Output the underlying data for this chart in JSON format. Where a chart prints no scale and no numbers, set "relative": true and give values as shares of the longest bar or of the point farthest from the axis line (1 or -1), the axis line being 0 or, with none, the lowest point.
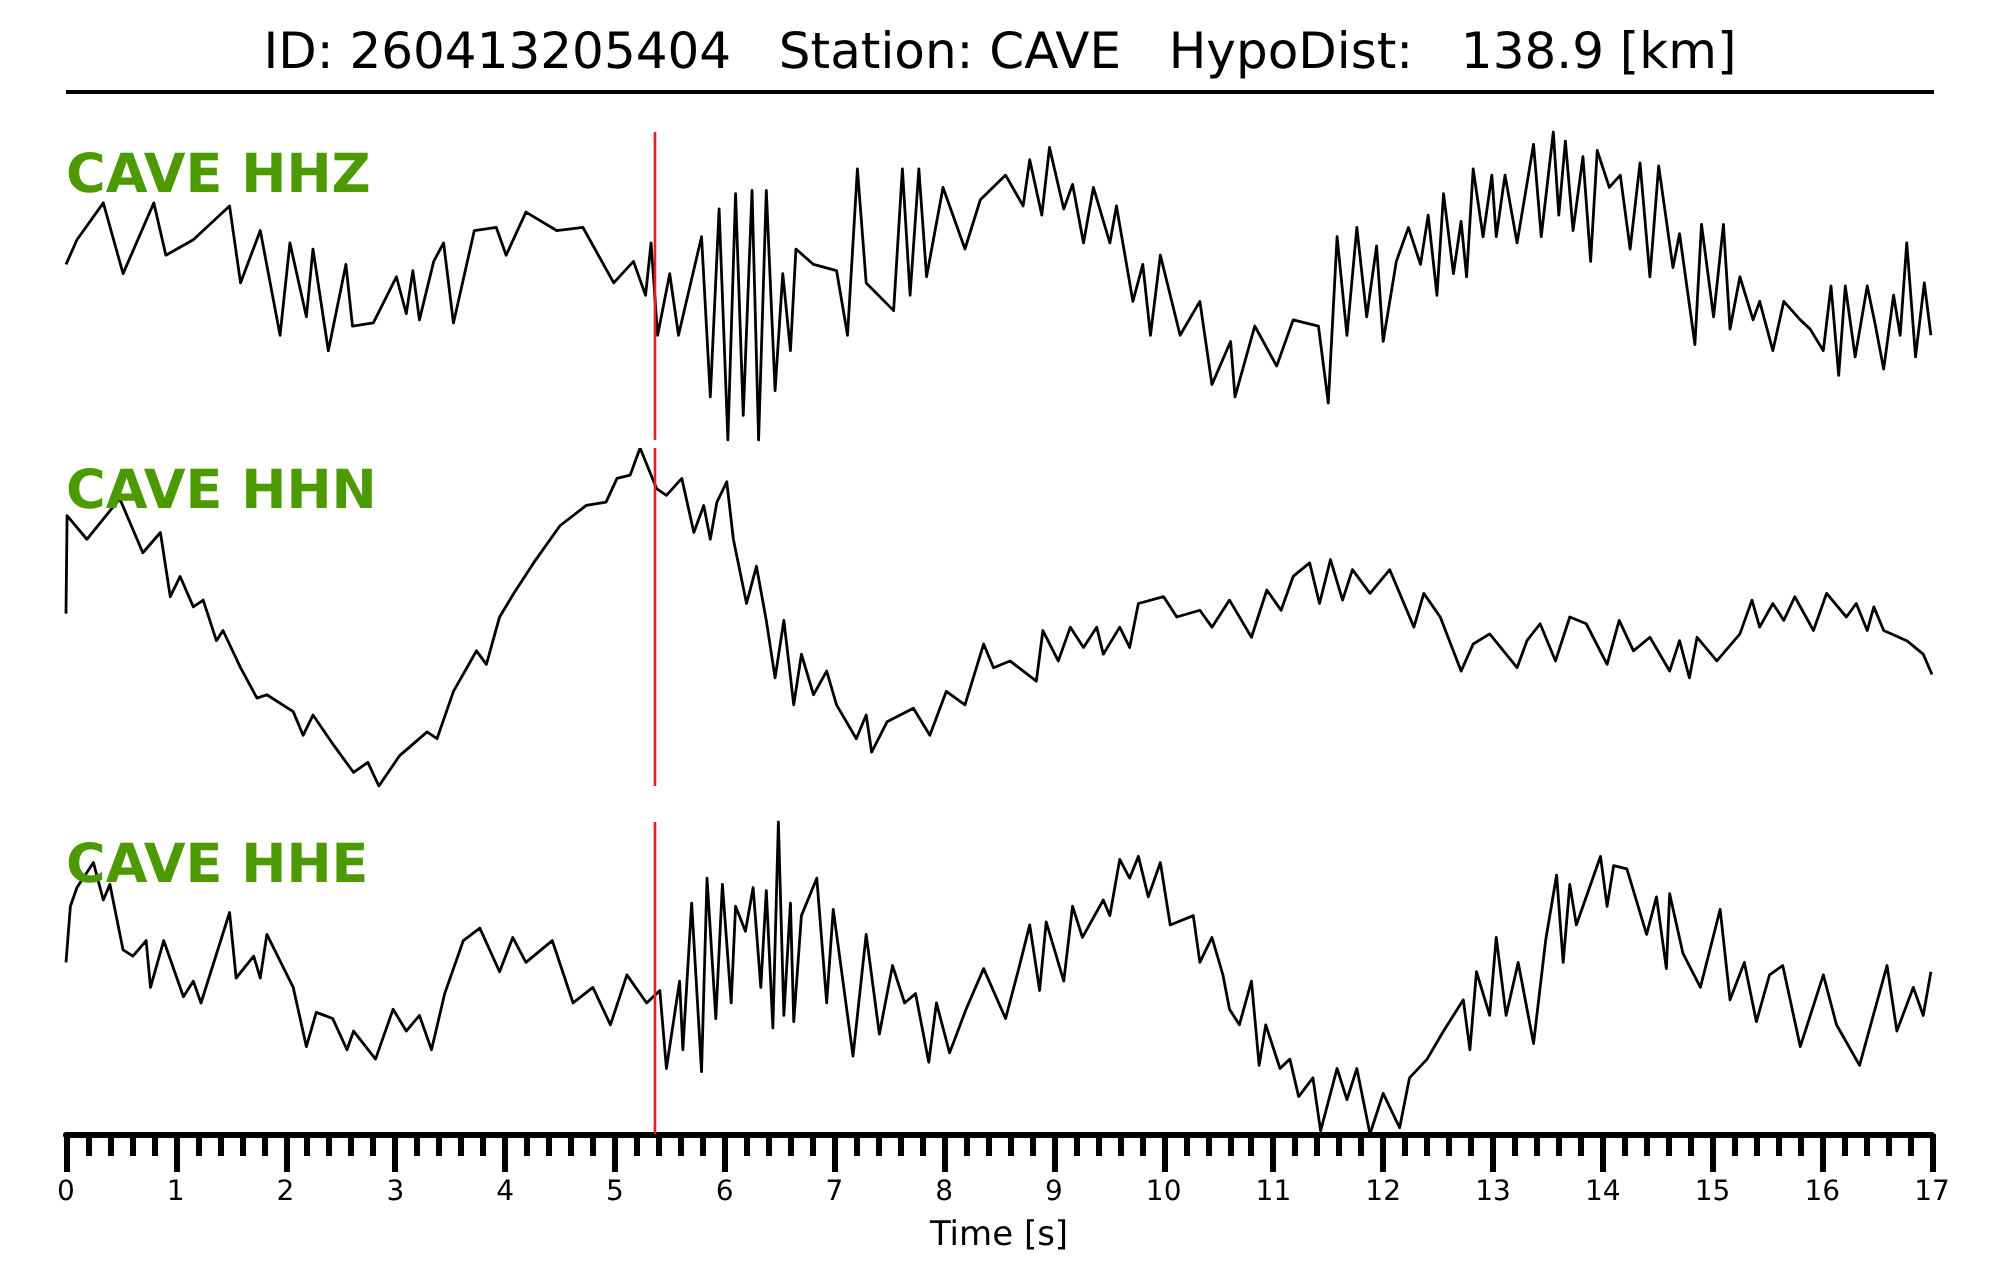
{
  "chart_data": [
    {
      "type": "line",
      "title": "ID: 260413205404   Station: CAVE   HypoDist:   138.9 [km]",
      "relative": true,
      "xlim": [
        0,
        17
      ],
      "tick_labels": false,
      "legend": false,
      "marker": "none",
      "line_style": "solid",
      "ref_lines": [
        {
          "axis": "x",
          "value": 5.37,
          "color": "#e02020"
        }
      ],
      "series": [
        {
          "name": "CAVE HHZ",
          "color": "#000000",
          "x": [
            0,
            0.1,
            0.34,
            0.52,
            0.8,
            0.91,
            1.16,
            1.49,
            1.59,
            1.77,
            1.95,
            2.04,
            2.19,
            2.25,
            2.39,
            2.55,
            2.61,
            2.8,
            3.01,
            3.1,
            3.16,
            3.22,
            3.35,
            3.44,
            3.53,
            3.72,
            3.92,
            4.01,
            4.19,
            4.47,
            4.71,
            4.99,
            5.17,
            5.28,
            5.33,
            5.39,
            5.5,
            5.58,
            5.79,
            5.87,
            5.95,
            6.03,
            6.1,
            6.17,
            6.25,
            6.31,
            6.38,
            6.46,
            6.53,
            6.6,
            6.65,
            6.81,
            7.02,
            7.12,
            7.21,
            7.29,
            7.54,
            7.62,
            7.69,
            7.77,
            7.84,
            7.99,
            8.19,
            8.33,
            8.56,
            8.72,
            8.78,
            8.89,
            8.96,
            9.09,
            9.17,
            9.27,
            9.36,
            9.51,
            9.57,
            9.72,
            9.81,
            9.88,
            9.97,
            10.15,
            10.33,
            10.44,
            10.61,
            10.65,
            10.83,
            11.03,
            11.18,
            11.41,
            11.5,
            11.58,
            11.67,
            11.76,
            11.85,
            11.94,
            12,
            12.12,
            12.23,
            12.34,
            12.41,
            12.49,
            12.55,
            12.64,
            12.71,
            12.76,
            12.82,
            12.91,
            12.99,
            13.03,
            13.11,
            13.22,
            13.37,
            13.44,
            13.55,
            13.6,
            13.66,
            13.73,
            13.82,
            13.89,
            13.95,
            14.06,
            14.16,
            14.25,
            14.34,
            14.43,
            14.51,
            14.64,
            14.7,
            14.84,
            14.9,
            15.01,
            15.1,
            15.16,
            15.25,
            15.37,
            15.43,
            15.55,
            15.65,
            15.8,
            15.89,
            16.01,
            16.08,
            16.15,
            16.21,
            16.3,
            16.41,
            16.48,
            16.56,
            16.65,
            16.71,
            16.77,
            16.85,
            16.93,
            16.99
          ],
          "values": [
            0.57,
            0.65,
            0.77,
            0.54,
            0.77,
            0.6,
            0.65,
            0.76,
            0.51,
            0.68,
            0.34,
            0.64,
            0.4,
            0.62,
            0.29,
            0.57,
            0.37,
            0.38,
            0.53,
            0.41,
            0.55,
            0.39,
            0.58,
            0.64,
            0.38,
            0.68,
            0.69,
            0.6,
            0.74,
            0.68,
            0.69,
            0.51,
            0.58,
            0.47,
            0.64,
            0.34,
            0.54,
            0.34,
            0.66,
            0.14,
            0.75,
            0,
            0.8,
            0.08,
            0.81,
            0,
            0.81,
            0.16,
            0.54,
            0.29,
            0.62,
            0.57,
            0.55,
            0.34,
            0.88,
            0.51,
            0.42,
            0.88,
            0.47,
            0.88,
            0.53,
            0.82,
            0.62,
            0.78,
            0.86,
            0.76,
            0.91,
            0.73,
            0.95,
            0.75,
            0.83,
            0.64,
            0.82,
            0.64,
            0.76,
            0.45,
            0.57,
            0.34,
            0.6,
            0.34,
            0.45,
            0.18,
            0.32,
            0.14,
            0.37,
            0.24,
            0.39,
            0.37,
            0.12,
            0.66,
            0.34,
            0.69,
            0.4,
            0.63,
            0.32,
            0.58,
            0.69,
            0.57,
            0.73,
            0.47,
            0.8,
            0.54,
            0.71,
            0.53,
            0.88,
            0.66,
            0.86,
            0.66,
            0.86,
            0.64,
            0.96,
            0.66,
            1,
            0.73,
            0.97,
            0.68,
            0.92,
            0.58,
            0.94,
            0.82,
            0.86,
            0.62,
            0.9,
            0.53,
            0.89,
            0.56,
            0.67,
            0.31,
            0.7,
            0.4,
            0.7,
            0.36,
            0.53,
            0.39,
            0.45,
            0.29,
            0.45,
            0.39,
            0.36,
            0.29,
            0.5,
            0.21,
            0.5,
            0.27,
            0.5,
            0.38,
            0.23,
            0.47,
            0.34,
            0.64,
            0.27,
            0.51,
            0.34
          ]
        }
      ]
    },
    {
      "type": "line",
      "relative": true,
      "xlim": [
        0,
        17
      ],
      "tick_labels": false,
      "legend": false,
      "marker": "none",
      "line_style": "solid",
      "ref_lines": [
        {
          "axis": "x",
          "value": 5.37,
          "color": "#e02020"
        }
      ],
      "series": [
        {
          "name": "CAVE HHN",
          "color": "#000000",
          "x": [
            0,
            0.01,
            0.19,
            0.49,
            0.7,
            0.86,
            0.95,
            1.04,
            1.16,
            1.25,
            1.37,
            1.43,
            1.59,
            1.74,
            1.83,
            2.07,
            2.16,
            2.25,
            2.44,
            2.62,
            2.75,
            2.85,
            3.04,
            3.29,
            3.38,
            3.53,
            3.74,
            3.83,
            3.95,
            4.08,
            4.26,
            4.5,
            4.74,
            4.92,
            5.02,
            5.14,
            5.23,
            5.38,
            5.47,
            5.61,
            5.72,
            5.81,
            5.87,
            5.93,
            6.02,
            6.08,
            6.2,
            6.29,
            6.38,
            6.46,
            6.54,
            6.63,
            6.7,
            6.81,
            6.93,
            7.02,
            7.2,
            7.29,
            7.34,
            7.48,
            7.72,
            7.87,
            8.02,
            8.19,
            8.36,
            8.45,
            8.6,
            8.84,
            8.9,
            9.04,
            9.15,
            9.27,
            9.39,
            9.45,
            9.6,
            9.69,
            9.77,
            10,
            10.12,
            10.33,
            10.44,
            10.6,
            10.8,
            10.94,
            11.07,
            11.18,
            11.33,
            11.42,
            11.52,
            11.63,
            11.72,
            11.88,
            12.06,
            12.28,
            12.37,
            12.52,
            12.71,
            12.82,
            12.97,
            13.22,
            13.31,
            13.43,
            13.57,
            13.7,
            13.85,
            14.04,
            14.15,
            14.28,
            14.43,
            14.61,
            14.7,
            14.79,
            14.86,
            15.04,
            15.25,
            15.36,
            15.43,
            15.55,
            15.65,
            15.75,
            15.92,
            16.04,
            16.22,
            16.31,
            16.41,
            16.47,
            16.56,
            16.77,
            16.92,
            17
          ],
          "values": [
            0.51,
            0.8,
            0.73,
            0.85,
            0.69,
            0.75,
            0.56,
            0.62,
            0.53,
            0.55,
            0.43,
            0.46,
            0.35,
            0.26,
            0.27,
            0.22,
            0.15,
            0.21,
            0.12,
            0.04,
            0.07,
            0,
            0.09,
            0.16,
            0.14,
            0.28,
            0.4,
            0.36,
            0.5,
            0.57,
            0.66,
            0.77,
            0.83,
            0.84,
            0.91,
            0.92,
            1,
            0.88,
            0.86,
            0.91,
            0.75,
            0.83,
            0.73,
            0.84,
            0.9,
            0.73,
            0.54,
            0.65,
            0.49,
            0.32,
            0.49,
            0.24,
            0.39,
            0.27,
            0.34,
            0.24,
            0.14,
            0.21,
            0.1,
            0.19,
            0.23,
            0.15,
            0.28,
            0.24,
            0.42,
            0.35,
            0.37,
            0.31,
            0.46,
            0.37,
            0.47,
            0.41,
            0.47,
            0.39,
            0.47,
            0.41,
            0.54,
            0.56,
            0.5,
            0.52,
            0.47,
            0.55,
            0.44,
            0.58,
            0.52,
            0.62,
            0.66,
            0.54,
            0.67,
            0.55,
            0.64,
            0.57,
            0.64,
            0.47,
            0.57,
            0.5,
            0.34,
            0.42,
            0.45,
            0.35,
            0.43,
            0.48,
            0.37,
            0.5,
            0.48,
            0.36,
            0.49,
            0.4,
            0.44,
            0.34,
            0.43,
            0.32,
            0.44,
            0.37,
            0.45,
            0.55,
            0.47,
            0.54,
            0.49,
            0.56,
            0.46,
            0.57,
            0.5,
            0.54,
            0.46,
            0.53,
            0.46,
            0.43,
            0.39,
            0.33
          ]
        }
      ]
    },
    {
      "type": "line",
      "relative": true,
      "xlabel": "Time [s]",
      "xlim": [
        0,
        17
      ],
      "tick_labels": "x",
      "marker": "none",
      "line_style": "solid",
      "xticks": [
        0,
        {
          "value": 0.2,
          "label": null
        },
        {
          "value": 0.4,
          "label": null
        },
        {
          "value": 0.6,
          "label": null
        },
        {
          "value": 0.8,
          "label": null
        },
        1,
        {
          "value": 1.2,
          "label": null
        },
        {
          "value": 1.4,
          "label": null
        },
        {
          "value": 1.6,
          "label": null
        },
        {
          "value": 1.8,
          "label": null
        },
        2,
        {
          "value": 2.2,
          "label": null
        },
        {
          "value": 2.4,
          "label": null
        },
        {
          "value": 2.6,
          "label": null
        },
        {
          "value": 2.8,
          "label": null
        },
        3,
        {
          "value": 3.2,
          "label": null
        },
        {
          "value": 3.4,
          "label": null
        },
        {
          "value": 3.6,
          "label": null
        },
        {
          "value": 3.8,
          "label": null
        },
        4,
        {
          "value": 4.2,
          "label": null
        },
        {
          "value": 4.4,
          "label": null
        },
        {
          "value": 4.6,
          "label": null
        },
        {
          "value": 4.8,
          "label": null
        },
        5,
        {
          "value": 5.2,
          "label": null
        },
        {
          "value": 5.4,
          "label": null
        },
        {
          "value": 5.6,
          "label": null
        },
        {
          "value": 5.8,
          "label": null
        },
        6,
        {
          "value": 6.2,
          "label": null
        },
        {
          "value": 6.4,
          "label": null
        },
        {
          "value": 6.6,
          "label": null
        },
        {
          "value": 6.8,
          "label": null
        },
        7,
        {
          "value": 7.2,
          "label": null
        },
        {
          "value": 7.4,
          "label": null
        },
        {
          "value": 7.6,
          "label": null
        },
        {
          "value": 7.8,
          "label": null
        },
        8,
        {
          "value": 8.2,
          "label": null
        },
        {
          "value": 8.4,
          "label": null
        },
        {
          "value": 8.6,
          "label": null
        },
        {
          "value": 8.8,
          "label": null
        },
        9,
        {
          "value": 9.2,
          "label": null
        },
        {
          "value": 9.4,
          "label": null
        },
        {
          "value": 9.6,
          "label": null
        },
        {
          "value": 9.8,
          "label": null
        },
        10,
        {
          "value": 10.2,
          "label": null
        },
        {
          "value": 10.4,
          "label": null
        },
        {
          "value": 10.6,
          "label": null
        },
        {
          "value": 10.8,
          "label": null
        },
        11,
        {
          "value": 11.2,
          "label": null
        },
        {
          "value": 11.4,
          "label": null
        },
        {
          "value": 11.6,
          "label": null
        },
        {
          "value": 11.8,
          "label": null
        },
        12,
        {
          "value": 12.2,
          "label": null
        },
        {
          "value": 12.4,
          "label": null
        },
        {
          "value": 12.6,
          "label": null
        },
        {
          "value": 12.8,
          "label": null
        },
        13,
        {
          "value": 13.2,
          "label": null
        },
        {
          "value": 13.4,
          "label": null
        },
        {
          "value": 13.6,
          "label": null
        },
        {
          "value": 13.8,
          "label": null
        },
        14,
        {
          "value": 14.2,
          "label": null
        },
        {
          "value": 14.4,
          "label": null
        },
        {
          "value": 14.6,
          "label": null
        },
        {
          "value": 14.8,
          "label": null
        },
        15,
        {
          "value": 15.2,
          "label": null
        },
        {
          "value": 15.4,
          "label": null
        },
        {
          "value": 15.6,
          "label": null
        },
        {
          "value": 15.8,
          "label": null
        },
        16,
        {
          "value": 16.2,
          "label": null
        },
        {
          "value": 16.4,
          "label": null
        },
        {
          "value": 16.6,
          "label": null
        },
        {
          "value": 16.8,
          "label": null
        },
        17
      ],
      "ref_lines": [
        {
          "axis": "x",
          "value": 5.37,
          "color": "#e02020"
        }
      ],
      "series": [
        {
          "name": "CAVE HHE",
          "color": "#000000",
          "x": [
            0,
            0.04,
            0.1,
            0.25,
            0.34,
            0.4,
            0.52,
            0.61,
            0.73,
            0.77,
            0.89,
            1.07,
            1.16,
            1.23,
            1.49,
            1.55,
            1.71,
            1.77,
            1.83,
            2.07,
            2.19,
            2.28,
            2.43,
            2.56,
            2.62,
            2.82,
            2.98,
            3.1,
            3.22,
            3.33,
            3.45,
            3.62,
            3.77,
            3.95,
            4.07,
            4.19,
            4.43,
            4.62,
            4.8,
            4.96,
            5.11,
            5.29,
            5.41,
            5.47,
            5.59,
            5.62,
            5.7,
            5.79,
            5.84,
            5.92,
            5.98,
            6.06,
            6.1,
            6.19,
            6.26,
            6.33,
            6.38,
            6.44,
            6.49,
            6.54,
            6.6,
            6.63,
            6.7,
            6.84,
            6.93,
            6.99,
            7.17,
            7.29,
            7.41,
            7.53,
            7.64,
            7.74,
            7.86,
            7.93,
            8.05,
            8.2,
            8.36,
            8.56,
            8.68,
            8.78,
            8.87,
            8.93,
            9.09,
            9.17,
            9.26,
            9.45,
            9.51,
            9.6,
            9.69,
            9.77,
            9.86,
            9.97,
            10.06,
            10.27,
            10.33,
            10.44,
            10.54,
            10.6,
            10.69,
            10.8,
            10.87,
            10.93,
            11.06,
            11.15,
            11.23,
            11.36,
            11.43,
            11.58,
            11.67,
            11.76,
            11.88,
            12,
            12.15,
            12.24,
            12.4,
            12.55,
            12.73,
            12.79,
            12.85,
            12.97,
            13.03,
            13.12,
            13.23,
            13.37,
            13.48,
            13.58,
            13.64,
            13.7,
            13.76,
            13.98,
            14.04,
            14.1,
            14.22,
            14.4,
            14.49,
            14.58,
            14.61,
            14.73,
            14.89,
            15.07,
            15.16,
            15.29,
            15.4,
            15.52,
            15.64,
            15.8,
            16.01,
            16.13,
            16.34,
            16.59,
            16.68,
            16.83,
            16.92,
            16.99
          ],
          "values": [
            0.55,
            0.73,
            0.79,
            0.87,
            0.75,
            0.8,
            0.59,
            0.57,
            0.62,
            0.47,
            0.62,
            0.44,
            0.49,
            0.42,
            0.71,
            0.5,
            0.57,
            0.5,
            0.64,
            0.47,
            0.28,
            0.39,
            0.37,
            0.27,
            0.33,
            0.24,
            0.4,
            0.33,
            0.38,
            0.27,
            0.45,
            0.62,
            0.66,
            0.52,
            0.63,
            0.55,
            0.62,
            0.42,
            0.47,
            0.35,
            0.51,
            0.42,
            0.46,
            0.21,
            0.49,
            0.27,
            0.74,
            0.2,
            0.82,
            0.37,
            0.8,
            0.42,
            0.73,
            0.65,
            0.79,
            0.47,
            0.78,
            0.34,
            1,
            0.38,
            0.74,
            0.36,
            0.7,
            0.82,
            0.42,
            0.72,
            0.25,
            0.64,
            0.32,
            0.54,
            0.42,
            0.45,
            0.23,
            0.42,
            0.26,
            0.4,
            0.53,
            0.37,
            0.53,
            0.67,
            0.46,
            0.68,
            0.49,
            0.73,
            0.63,
            0.75,
            0.7,
            0.88,
            0.82,
            0.89,
            0.76,
            0.87,
            0.67,
            0.7,
            0.55,
            0.63,
            0.51,
            0.4,
            0.35,
            0.49,
            0.22,
            0.35,
            0.21,
            0.24,
            0.12,
            0.18,
            0.01,
            0.21,
            0.11,
            0.21,
            0,
            0.13,
            0.02,
            0.18,
            0.24,
            0.33,
            0.43,
            0.27,
            0.52,
            0.38,
            0.63,
            0.38,
            0.55,
            0.29,
            0.62,
            0.83,
            0.55,
            0.8,
            0.67,
            0.89,
            0.73,
            0.86,
            0.85,
            0.64,
            0.76,
            0.53,
            0.77,
            0.58,
            0.47,
            0.72,
            0.43,
            0.55,
            0.36,
            0.51,
            0.54,
            0.28,
            0.51,
            0.35,
            0.22,
            0.54,
            0.33,
            0.47,
            0.38,
            0.52
          ]
        }
      ]
    }
  ]
}
